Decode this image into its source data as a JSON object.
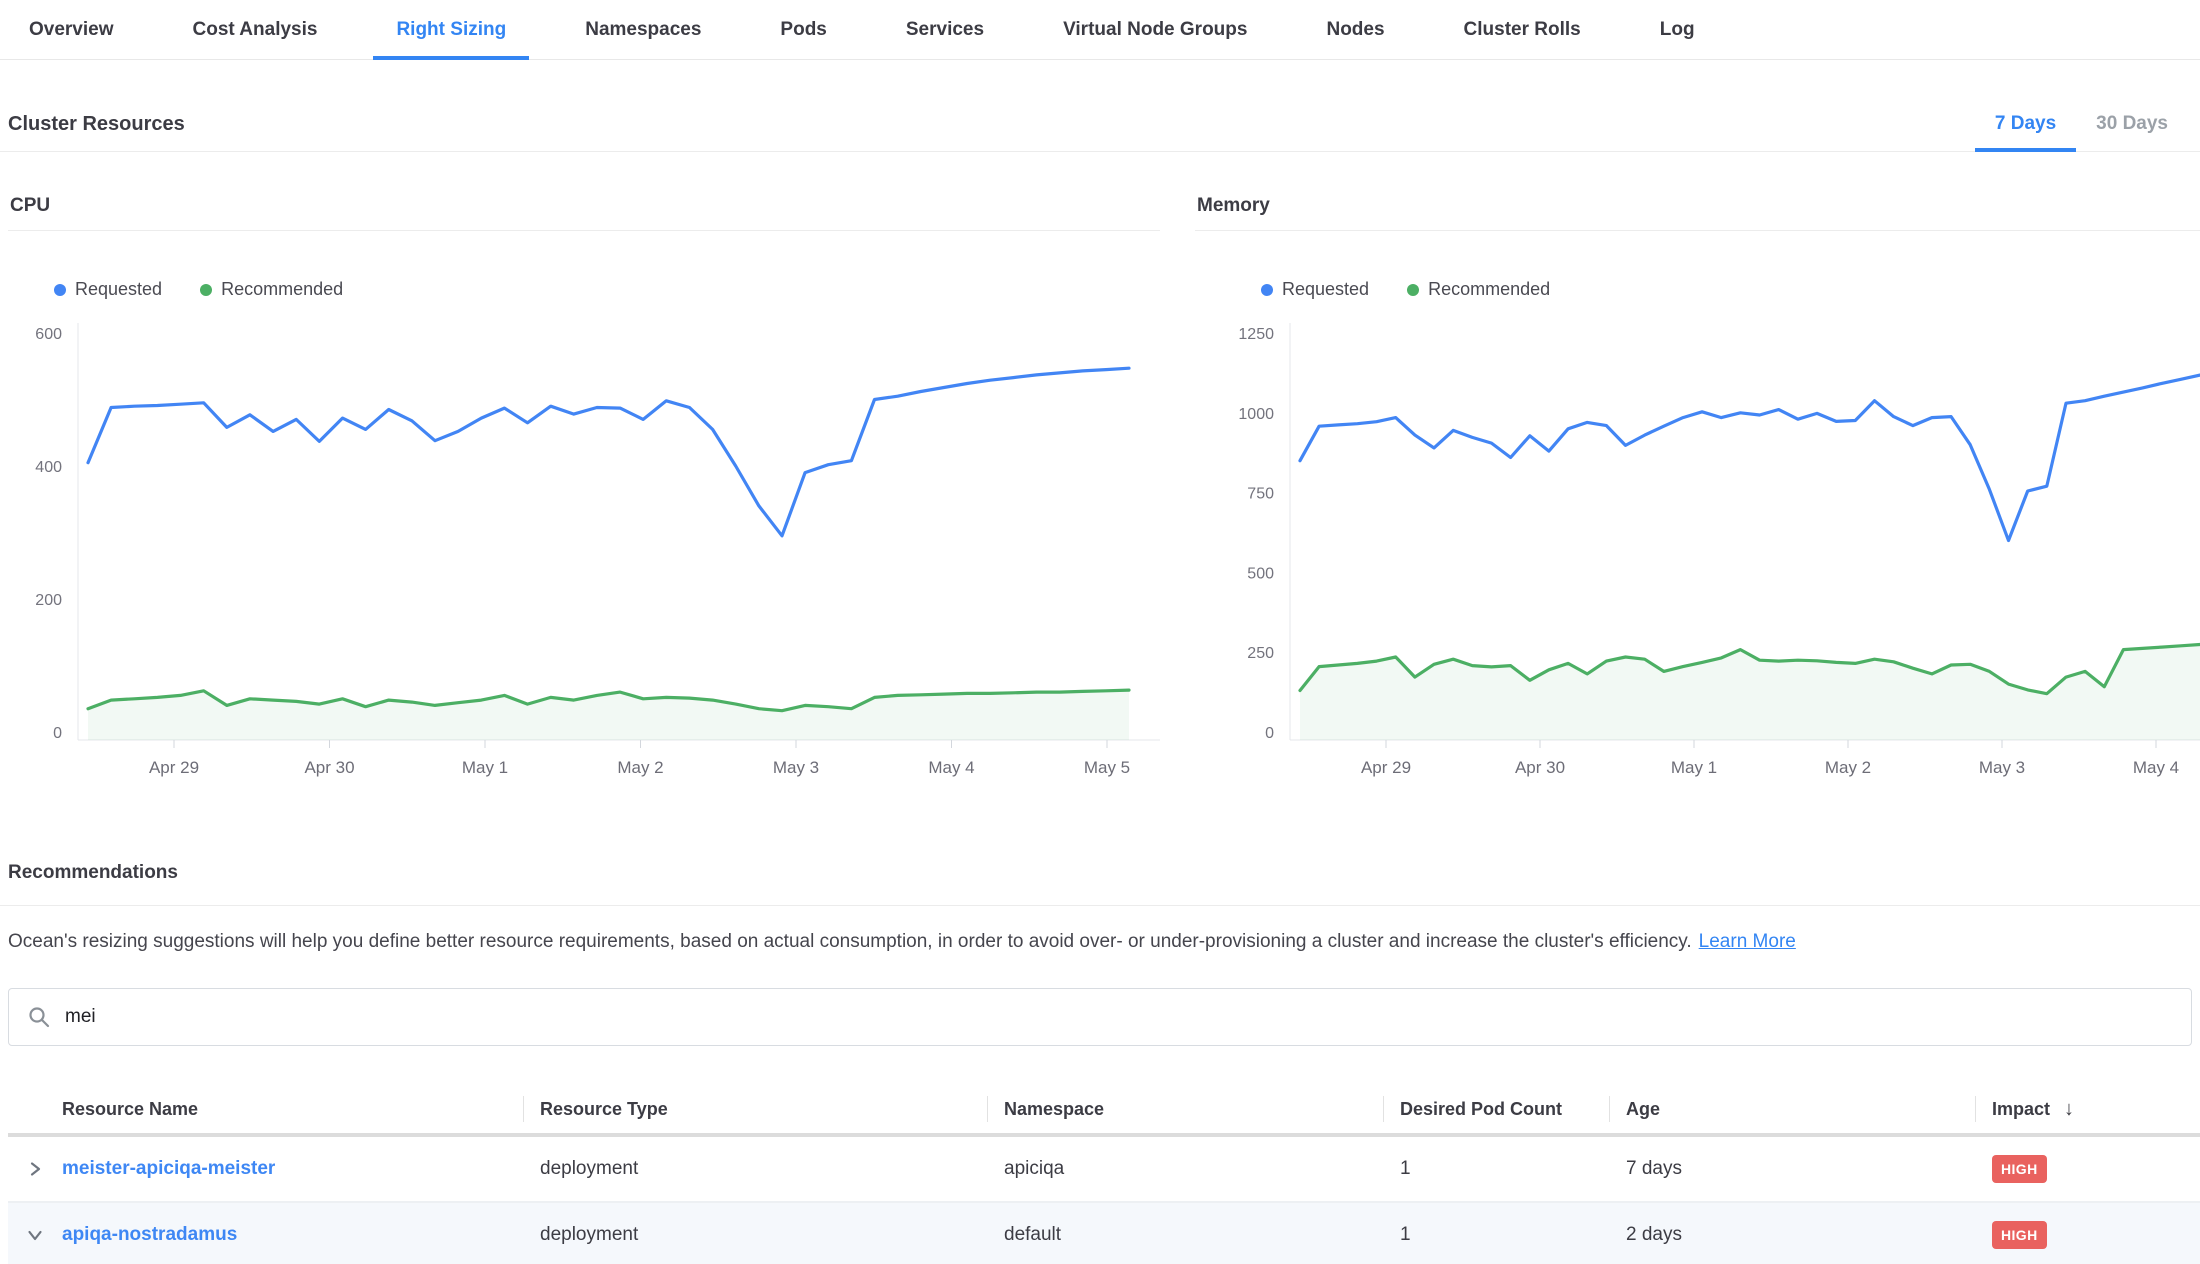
{
  "nav": {
    "tabs": [
      {
        "label": "Overview",
        "active": false
      },
      {
        "label": "Cost Analysis",
        "active": false
      },
      {
        "label": "Right Sizing",
        "active": true
      },
      {
        "label": "Namespaces",
        "active": false
      },
      {
        "label": "Pods",
        "active": false
      },
      {
        "label": "Services",
        "active": false
      },
      {
        "label": "Virtual Node Groups",
        "active": false
      },
      {
        "label": "Nodes",
        "active": false
      },
      {
        "label": "Cluster Rolls",
        "active": false
      },
      {
        "label": "Log",
        "active": false
      }
    ]
  },
  "section": {
    "title": "Cluster Resources",
    "ranges": [
      {
        "label": "7 Days",
        "active": true
      },
      {
        "label": "30 Days",
        "active": false
      }
    ]
  },
  "colors": {
    "accent_blue": "#3385f3",
    "series_blue": "#4285f4",
    "series_green": "#4caf64",
    "badge_high_red": "#e9625f",
    "inactive_gray": "#9ba1a8"
  },
  "chart_data": [
    {
      "type": "line",
      "title": "CPU",
      "x_ticks": [
        "Apr 29",
        "Apr 30",
        "May 1",
        "May 2",
        "May 3",
        "May 4",
        "May 5"
      ],
      "ylim": [
        0,
        600
      ],
      "y_ticks": [
        600,
        400,
        200,
        0
      ],
      "grid": false,
      "legend_position": "top-left",
      "series": [
        {
          "name": "Requested",
          "color": "#4285f4",
          "fill": false,
          "values": [
            405,
            488,
            490,
            491,
            493,
            495,
            458,
            477,
            452,
            470,
            437,
            472,
            455,
            485,
            468,
            438,
            452,
            472,
            487,
            465,
            490,
            478,
            488,
            487,
            470,
            498,
            488,
            455,
            400,
            340,
            295,
            390,
            402,
            408,
            500,
            505,
            512,
            518,
            524,
            529,
            533,
            537,
            540,
            543,
            545,
            547
          ]
        },
        {
          "name": "Recommended",
          "color": "#4caf64",
          "fill": true,
          "values": [
            35,
            48,
            50,
            52,
            55,
            62,
            40,
            50,
            48,
            46,
            42,
            50,
            38,
            48,
            45,
            40,
            44,
            48,
            55,
            42,
            52,
            48,
            55,
            60,
            50,
            52,
            51,
            48,
            42,
            35,
            32,
            40,
            38,
            35,
            52,
            55,
            56,
            57,
            58,
            58,
            59,
            60,
            60,
            61,
            62,
            63
          ]
        }
      ]
    },
    {
      "type": "line",
      "title": "Memory",
      "x_ticks": [
        "Apr 29",
        "Apr 30",
        "May 1",
        "May 2",
        "May 3",
        "May 4"
      ],
      "ylim": [
        0,
        1250
      ],
      "y_ticks": [
        1250,
        1000,
        750,
        500,
        250,
        0
      ],
      "grid": false,
      "legend_position": "top-left",
      "series": [
        {
          "name": "Requested",
          "color": "#4285f4",
          "fill": false,
          "values": [
            850,
            958,
            962,
            966,
            972,
            985,
            930,
            890,
            945,
            923,
            905,
            860,
            928,
            880,
            950,
            970,
            960,
            898,
            930,
            958,
            985,
            1003,
            985,
            1000,
            993,
            1010,
            980,
            998,
            973,
            976,
            1038,
            988,
            960,
            985,
            988,
            900,
            760,
            600,
            755,
            770,
            1030,
            1038,
            1052,
            1065,
            1078,
            1092,
            1105,
            1118
          ]
        },
        {
          "name": "Recommended",
          "color": "#4caf64",
          "fill": true,
          "values": [
            130,
            205,
            210,
            215,
            222,
            235,
            172,
            212,
            228,
            208,
            204,
            208,
            162,
            195,
            215,
            182,
            222,
            235,
            228,
            190,
            205,
            218,
            232,
            258,
            225,
            222,
            225,
            223,
            218,
            215,
            228,
            220,
            200,
            182,
            210,
            212,
            190,
            150,
            132,
            120,
            172,
            190,
            142,
            258,
            262,
            266,
            270,
            274
          ]
        }
      ]
    }
  ],
  "recommendations": {
    "title": "Recommendations",
    "description": "Ocean's resizing suggestions will help you define better resource requirements, based on actual consumption, in order to avoid over- or under-provisioning a cluster and increase the cluster's efficiency.",
    "link_label": "Learn More"
  },
  "search": {
    "value": "mei",
    "placeholder": ""
  },
  "table": {
    "columns": [
      "Resource Name",
      "Resource Type",
      "Namespace",
      "Desired Pod Count",
      "Age",
      "Impact"
    ],
    "sort": {
      "column": "Impact",
      "direction": "desc",
      "icon": "↓"
    },
    "rows": [
      {
        "name": "meister-apiciqa-meister",
        "resource_type": "deployment",
        "namespace": "apiciqa",
        "desired_pod_count": "1",
        "age": "7 days",
        "impact": "HIGH",
        "expanded": false
      },
      {
        "name": "apiqa-nostradamus",
        "resource_type": "deployment",
        "namespace": "default",
        "desired_pod_count": "1",
        "age": "2 days",
        "impact": "HIGH",
        "expanded": true
      }
    ]
  }
}
